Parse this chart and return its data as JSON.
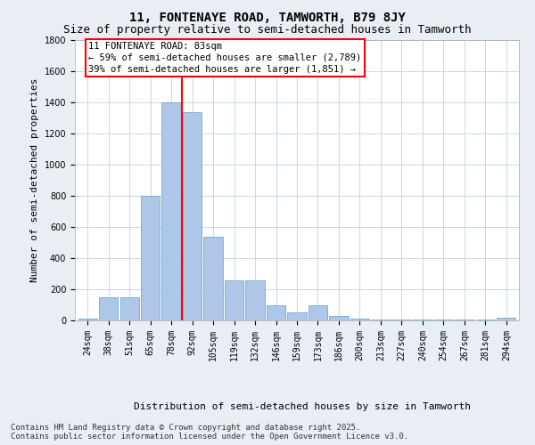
{
  "title1": "11, FONTENAYE ROAD, TAMWORTH, B79 8JY",
  "title2": "Size of property relative to semi-detached houses in Tamworth",
  "xlabel": "Distribution of semi-detached houses by size in Tamworth",
  "ylabel": "Number of semi-detached properties",
  "categories": [
    "24sqm",
    "38sqm",
    "51sqm",
    "65sqm",
    "78sqm",
    "92sqm",
    "105sqm",
    "119sqm",
    "132sqm",
    "146sqm",
    "159sqm",
    "173sqm",
    "186sqm",
    "200sqm",
    "213sqm",
    "227sqm",
    "240sqm",
    "254sqm",
    "267sqm",
    "281sqm",
    "294sqm"
  ],
  "values": [
    10,
    150,
    150,
    800,
    1400,
    1340,
    540,
    260,
    260,
    100,
    50,
    100,
    30,
    10,
    5,
    5,
    5,
    5,
    5,
    5,
    20
  ],
  "bar_color": "#aec6e8",
  "bar_edge_color": "#5a9fd4",
  "annotation_text": "11 FONTENAYE ROAD: 83sqm\n← 59% of semi-detached houses are smaller (2,789)\n39% of semi-detached houses are larger (1,851) →",
  "vline_x": 4.5,
  "ylim": [
    0,
    1800
  ],
  "yticks": [
    0,
    200,
    400,
    600,
    800,
    1000,
    1200,
    1400,
    1600,
    1800
  ],
  "footnote": "Contains HM Land Registry data © Crown copyright and database right 2025.\nContains public sector information licensed under the Open Government Licence v3.0.",
  "bg_color": "#e8eef4",
  "plot_bg_color": "#ffffff",
  "grid_color": "#c8d8e8",
  "title1_fontsize": 10,
  "title2_fontsize": 9,
  "ylabel_fontsize": 8,
  "xlabel_fontsize": 8,
  "tick_fontsize": 7,
  "annot_fontsize": 7.5
}
